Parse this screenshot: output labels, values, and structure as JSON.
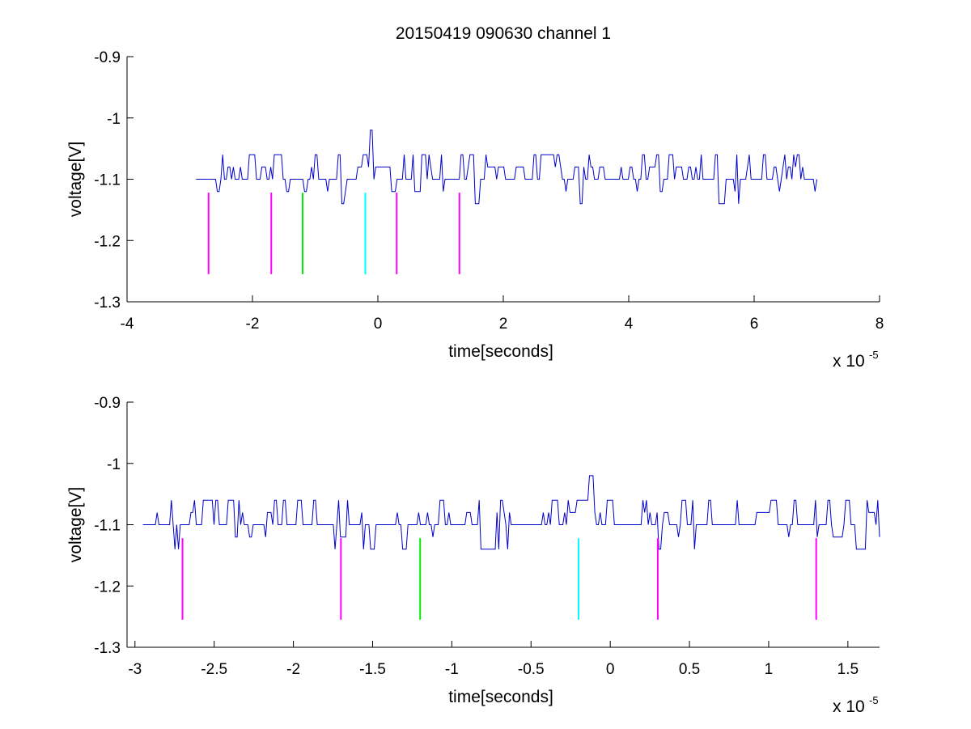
{
  "title": "20150419 090630 channel 1",
  "colors": {
    "signal": "#0000cc",
    "magenta": "#ff00ff",
    "green": "#00ee00",
    "cyan": "#00ffff",
    "axis": "#000000"
  },
  "chart_data": [
    {
      "type": "line",
      "name": "top",
      "xlabel": "time[seconds]",
      "ylabel": "voltage[V]",
      "x_exponent_label": "x 10",
      "x_exponent": "-5",
      "xlim": [
        -4e-05,
        8e-05
      ],
      "ylim": [
        -1.3,
        -0.9
      ],
      "xticks": [
        -4e-05,
        -2e-05,
        0,
        2e-05,
        4e-05,
        6e-05,
        8e-05
      ],
      "xtick_labels": [
        "-4",
        "-2",
        "0",
        "2",
        "4",
        "6",
        "8"
      ],
      "yticks": [
        -1.3,
        -1.2,
        -1.1,
        -1.0,
        -0.9
      ],
      "ytick_labels": [
        "-1.3",
        "-1.2",
        "-1.1",
        "-1",
        "-0.9"
      ],
      "signal": {
        "x_start": -2.9e-05,
        "x_end": 7e-05,
        "baseline": -1.1,
        "levels": [
          -1.14,
          -1.12,
          -1.1,
          -1.08,
          -1.06
        ],
        "peak": {
          "x": -1.2e-06,
          "y": -1.02
        },
        "density": 0.6
      },
      "markers": [
        {
          "x": -2.7e-05,
          "y_top": -1.122,
          "y_bottom": -1.255,
          "color": "magenta"
        },
        {
          "x": -1.7e-05,
          "y_top": -1.122,
          "y_bottom": -1.255,
          "color": "magenta"
        },
        {
          "x": -1.2e-05,
          "y_top": -1.122,
          "y_bottom": -1.255,
          "color": "green"
        },
        {
          "x": -2e-06,
          "y_top": -1.122,
          "y_bottom": -1.255,
          "color": "cyan"
        },
        {
          "x": 3e-06,
          "y_top": -1.122,
          "y_bottom": -1.255,
          "color": "magenta"
        },
        {
          "x": 1.3e-05,
          "y_top": -1.122,
          "y_bottom": -1.255,
          "color": "magenta"
        }
      ]
    },
    {
      "type": "line",
      "name": "bottom",
      "xlabel": "time[seconds]",
      "ylabel": "voltage[V]",
      "x_exponent_label": "x 10",
      "x_exponent": "-5",
      "xlim": [
        -3.05e-05,
        1.7e-05
      ],
      "ylim": [
        -1.3,
        -0.9
      ],
      "xticks": [
        -3e-05,
        -2.5e-05,
        -2e-05,
        -1.5e-05,
        -1e-05,
        -5e-06,
        0,
        5e-06,
        1e-05,
        1.5e-05
      ],
      "xtick_labels": [
        "-3",
        "-2.5",
        "-2",
        "-1.5",
        "-1",
        "-0.5",
        "0",
        "0.5",
        "1",
        "1.5"
      ],
      "yticks": [
        -1.3,
        -1.2,
        -1.1,
        -1.0,
        -0.9
      ],
      "ytick_labels": [
        "-1.3",
        "-1.2",
        "-1.1",
        "-1",
        "-0.9"
      ],
      "signal": {
        "x_start": -2.95e-05,
        "x_end": 1.7e-05,
        "baseline": -1.1,
        "levels": [
          -1.14,
          -1.12,
          -1.1,
          -1.08,
          -1.06
        ],
        "peak": {
          "x": -1.3e-06,
          "y": -1.02
        },
        "density": 0.45
      },
      "markers": [
        {
          "x": -2.7e-05,
          "y_top": -1.122,
          "y_bottom": -1.255,
          "color": "magenta"
        },
        {
          "x": -1.7e-05,
          "y_top": -1.122,
          "y_bottom": -1.255,
          "color": "magenta"
        },
        {
          "x": -1.2e-05,
          "y_top": -1.122,
          "y_bottom": -1.255,
          "color": "green"
        },
        {
          "x": -2e-06,
          "y_top": -1.122,
          "y_bottom": -1.255,
          "color": "cyan"
        },
        {
          "x": 3e-06,
          "y_top": -1.122,
          "y_bottom": -1.255,
          "color": "magenta"
        },
        {
          "x": 1.3e-05,
          "y_top": -1.122,
          "y_bottom": -1.255,
          "color": "magenta"
        }
      ]
    }
  ]
}
